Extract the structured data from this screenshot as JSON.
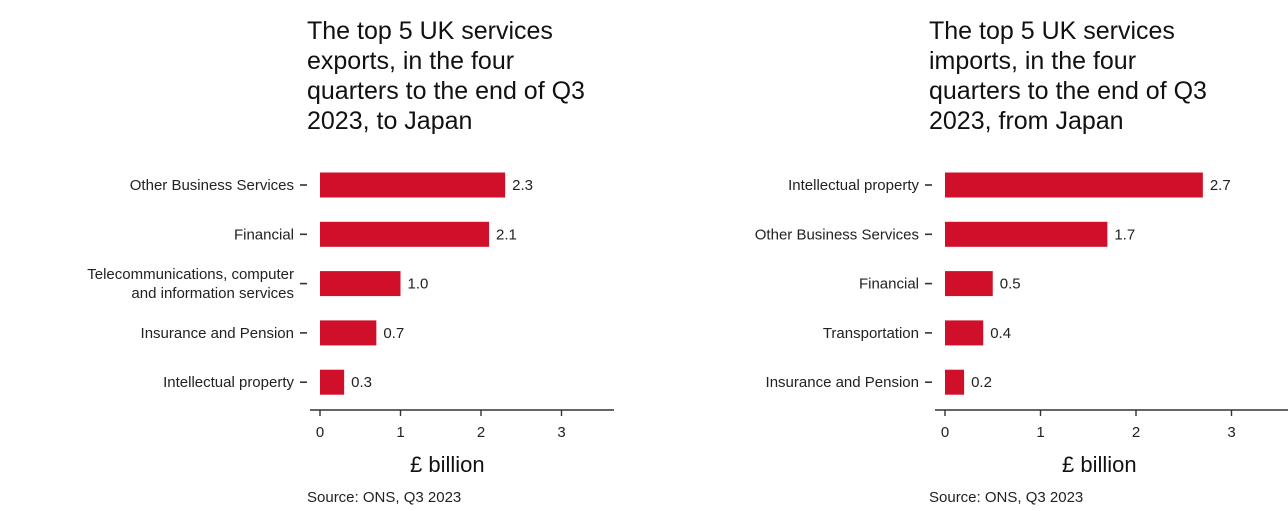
{
  "accent_color": "#d0102b",
  "charts": [
    {
      "title_lines": [
        "The top 5 UK services",
        "exports, in the four",
        "quarters to the end of Q3",
        "2023, to Japan"
      ],
      "source": "Source: ONS, Q3 2023"
    },
    {
      "title_lines": [
        "The top 5 UK services",
        "imports, in the four",
        "quarters to the end of Q3",
        "2023, from Japan"
      ],
      "source": "Source: ONS, Q3 2023"
    }
  ],
  "chart_data": [
    {
      "type": "bar",
      "orientation": "horizontal",
      "title": "The top 5 UK services exports, in the four quarters to the end of Q3 2023, to Japan",
      "categories": [
        [
          "Other Business Services"
        ],
        [
          "Financial"
        ],
        [
          "Telecommunications, computer",
          "and information services"
        ],
        [
          "Insurance and Pension"
        ],
        [
          "Intellectual property"
        ]
      ],
      "values": [
        2.3,
        2.1,
        1.0,
        0.7,
        0.3
      ],
      "value_labels": [
        "2.3",
        "2.1",
        "1.0",
        "0.7",
        "0.3"
      ],
      "xlabel": "£ billion",
      "xlim": [
        0,
        3.6
      ],
      "xticks": [
        0,
        1,
        2,
        3
      ],
      "grid": false,
      "color": "#d0102b"
    },
    {
      "type": "bar",
      "orientation": "horizontal",
      "title": "The top 5 UK services imports, in the four quarters to the end of Q3 2023, from Japan",
      "categories": [
        [
          "Intellectual property"
        ],
        [
          "Other Business Services"
        ],
        [
          "Financial"
        ],
        [
          "Transportation"
        ],
        [
          "Insurance and Pension"
        ]
      ],
      "values": [
        2.7,
        1.7,
        0.5,
        0.4,
        0.2
      ],
      "value_labels": [
        "2.7",
        "1.7",
        "0.5",
        "0.4",
        "0.2"
      ],
      "xlabel": "£ billion",
      "xlim": [
        0,
        3.6
      ],
      "xticks": [
        0,
        1,
        2,
        3
      ],
      "grid": false,
      "color": "#d0102b"
    }
  ]
}
